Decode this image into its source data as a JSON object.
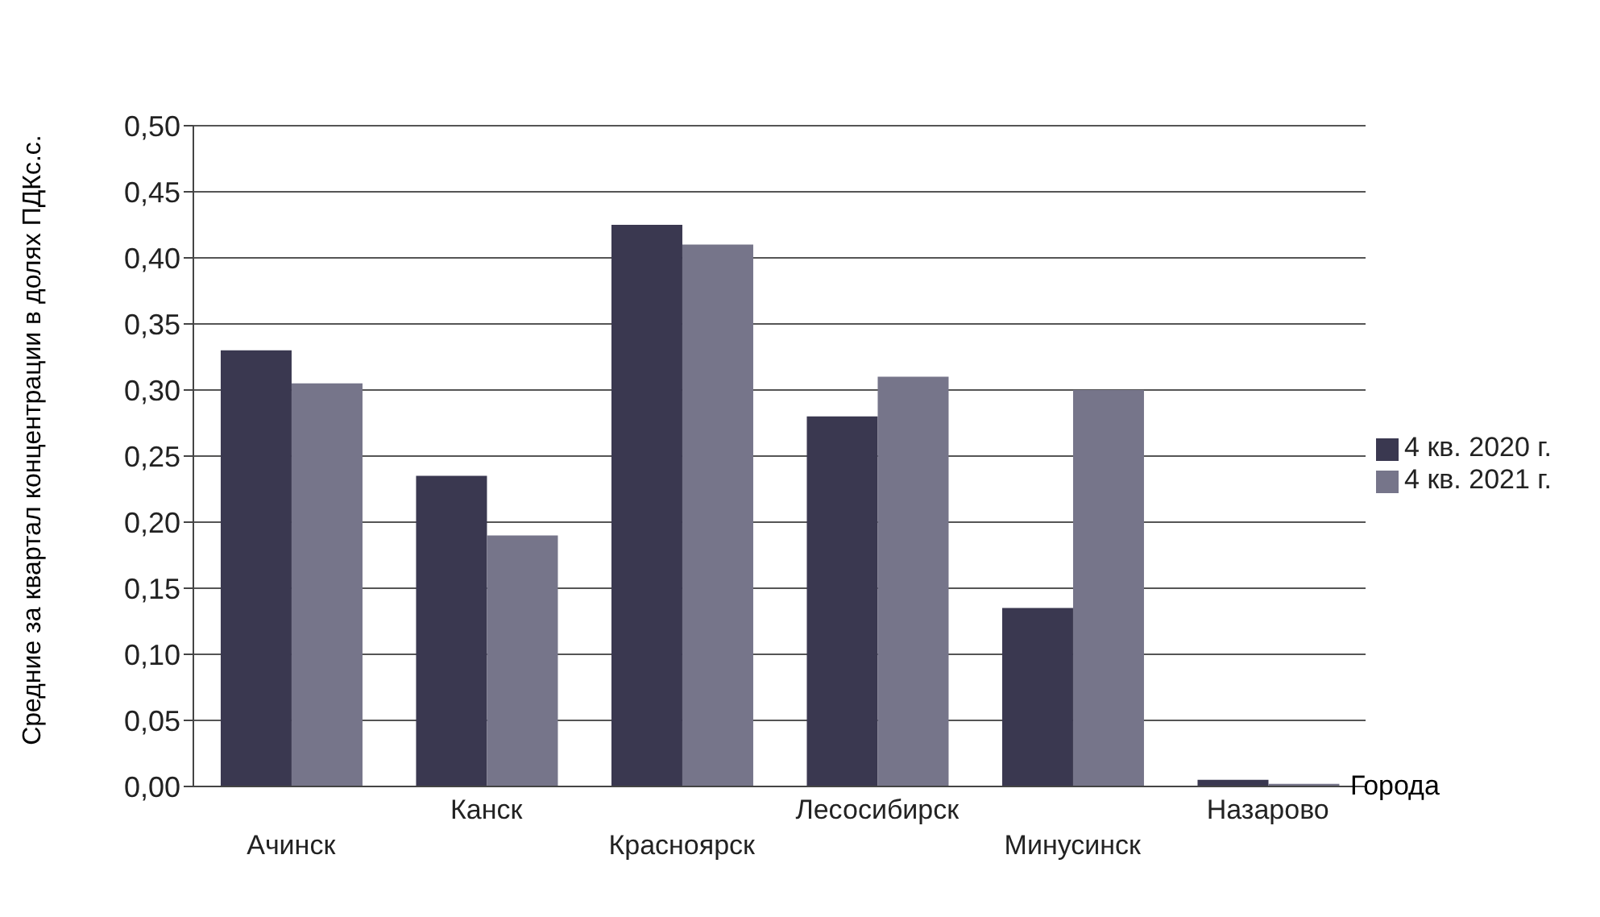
{
  "chart_data": {
    "type": "bar",
    "xlabel": "Города",
    "ylabel": "Средние за квартал концентрации в долях ПДКс.с.",
    "categories": [
      "Ачинск",
      "Канск",
      "Красноярск",
      "Лесосибирск",
      "Минусинск",
      "Назарово"
    ],
    "series": [
      {
        "name": "4 кв. 2020 г.",
        "color": "#3a3850",
        "values": [
          0.33,
          0.235,
          0.425,
          0.28,
          0.135,
          0.005
        ]
      },
      {
        "name": "4 кв. 2021 г.",
        "color": "#76758a",
        "values": [
          0.305,
          0.19,
          0.41,
          0.31,
          0.3,
          0.002
        ]
      }
    ],
    "ylim": [
      0,
      0.5
    ],
    "yticks": [
      {
        "value": 0,
        "label": "0,00"
      },
      {
        "value": 0.05,
        "label": "0,05"
      },
      {
        "value": 0.1,
        "label": "0,10"
      },
      {
        "value": 0.15,
        "label": "0,15"
      },
      {
        "value": 0.2,
        "label": "0,20"
      },
      {
        "value": 0.25,
        "label": "0,25"
      },
      {
        "value": 0.3,
        "label": "0,30"
      },
      {
        "value": 0.35,
        "label": "0,35"
      },
      {
        "value": 0.4,
        "label": "0,40"
      },
      {
        "value": 0.45,
        "label": "0,45"
      },
      {
        "value": 0.5,
        "label": "0,50"
      }
    ],
    "grid": "y",
    "legend": "right"
  }
}
